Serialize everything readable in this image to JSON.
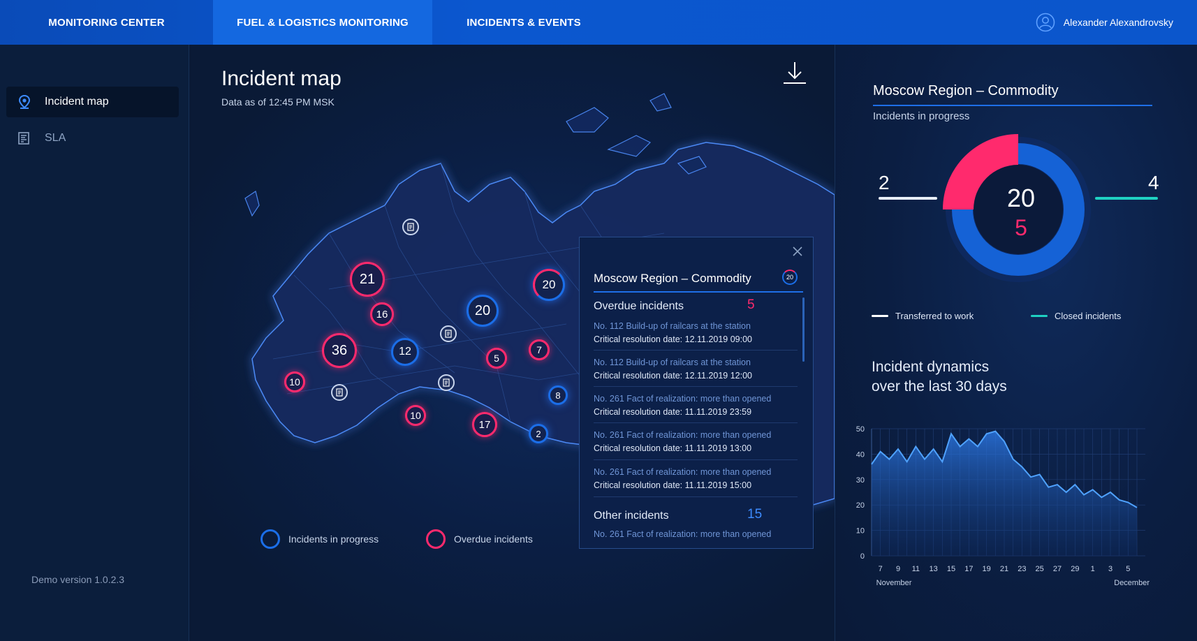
{
  "nav": {
    "tabs": [
      "MONITORING CENTER",
      "FUEL & LOGISTICS MONITORING",
      "INCIDENTS & EVENTS"
    ],
    "active_tab": "FUEL & LOGISTICS MONITORING",
    "user_name": "Alexander Alexandrovsky"
  },
  "sidebar": {
    "items": [
      {
        "label": "Incident map",
        "icon": "map-pin-icon",
        "active": true
      },
      {
        "label": "SLA",
        "icon": "document-list-icon",
        "active": false
      }
    ],
    "version": "Demo version  1.0.2.3"
  },
  "map": {
    "title": "Incident map",
    "subtitle": "Data as of 12:45 PM MSK",
    "markers": [
      {
        "value": "21",
        "status": "overdue"
      },
      {
        "value": "16",
        "status": "overdue"
      },
      {
        "value": "36",
        "status": "overdue"
      },
      {
        "value": "10",
        "status": "overdue"
      },
      {
        "value": "12",
        "status": "in-progress"
      },
      {
        "value": "20",
        "status": "in-progress"
      },
      {
        "value": "5",
        "status": "overdue"
      },
      {
        "value": "7",
        "status": "overdue"
      },
      {
        "value": "10",
        "status": "overdue"
      },
      {
        "value": "17",
        "status": "overdue"
      },
      {
        "value": "2",
        "status": "in-progress"
      },
      {
        "value": "8",
        "status": "in-progress"
      },
      {
        "value": "20",
        "status": "mixed"
      }
    ],
    "legend": {
      "in_progress": "Incidents in progress",
      "overdue": "Overdue incidents"
    },
    "colors": {
      "in_progress": "#1b6ee8",
      "overdue": "#ff2a6d"
    }
  },
  "popup": {
    "title": "Moscow Region – Commodity",
    "badge": "20",
    "overdue_label": "Overdue incidents",
    "overdue_count": "5",
    "items": [
      {
        "title": "No. 112 Build-up of railcars at the station",
        "date": "Critical resolution date: 12.11.2019 09:00"
      },
      {
        "title": "No. 112 Build-up of railcars at the station",
        "date": "Critical resolution date: 12.11.2019 12:00"
      },
      {
        "title": "No. 261 Fact of realization: more than opened",
        "date": "Critical resolution date: 11.11.2019 23:59"
      },
      {
        "title": "No. 261 Fact of realization: more than opened",
        "date": "Critical resolution date: 11.11.2019 13:00"
      },
      {
        "title": "No. 261 Fact of realization: more than opened",
        "date": "Critical resolution date: 11.11.2019 15:00"
      }
    ],
    "other_label": "Other incidents",
    "other_count": "15",
    "other_item": "No. 261 Fact of realization: more than opened"
  },
  "right": {
    "title": "Moscow Region – Commodity",
    "subtitle": "Incidents in progress",
    "total": "20",
    "overdue": "5",
    "transferred": "2",
    "closed": "4",
    "overdue_fraction": 0.25,
    "legend_transferred": "Transferred to work",
    "legend_closed": "Closed incidents",
    "dynamics_title_1": "Incident dynamics",
    "dynamics_title_2": "over the last 30 days"
  },
  "chart_data": {
    "type": "area",
    "title": "Incident dynamics over the last 30 days",
    "ylim": [
      0,
      50
    ],
    "yticks": [
      0,
      10,
      20,
      30,
      40,
      50
    ],
    "x_ticks": [
      "7",
      "9",
      "11",
      "13",
      "15",
      "17",
      "19",
      "21",
      "23",
      "25",
      "27",
      "29",
      "1",
      "3",
      "5"
    ],
    "x_groups": [
      "November",
      "December"
    ],
    "x": [
      "6",
      "7",
      "8",
      "9",
      "10",
      "11",
      "12",
      "13",
      "14",
      "15",
      "16",
      "17",
      "18",
      "19",
      "20",
      "21",
      "22",
      "23",
      "24",
      "25",
      "26",
      "27",
      "28",
      "29",
      "30",
      "1",
      "2",
      "3",
      "4",
      "5",
      "6"
    ],
    "values": [
      36,
      41,
      38,
      42,
      37,
      43,
      38,
      42,
      37,
      48,
      43,
      46,
      43,
      48,
      49,
      45,
      38,
      35,
      31,
      32,
      27,
      28,
      25,
      28,
      24,
      26,
      23,
      25,
      22,
      21,
      19
    ],
    "grid": true
  }
}
